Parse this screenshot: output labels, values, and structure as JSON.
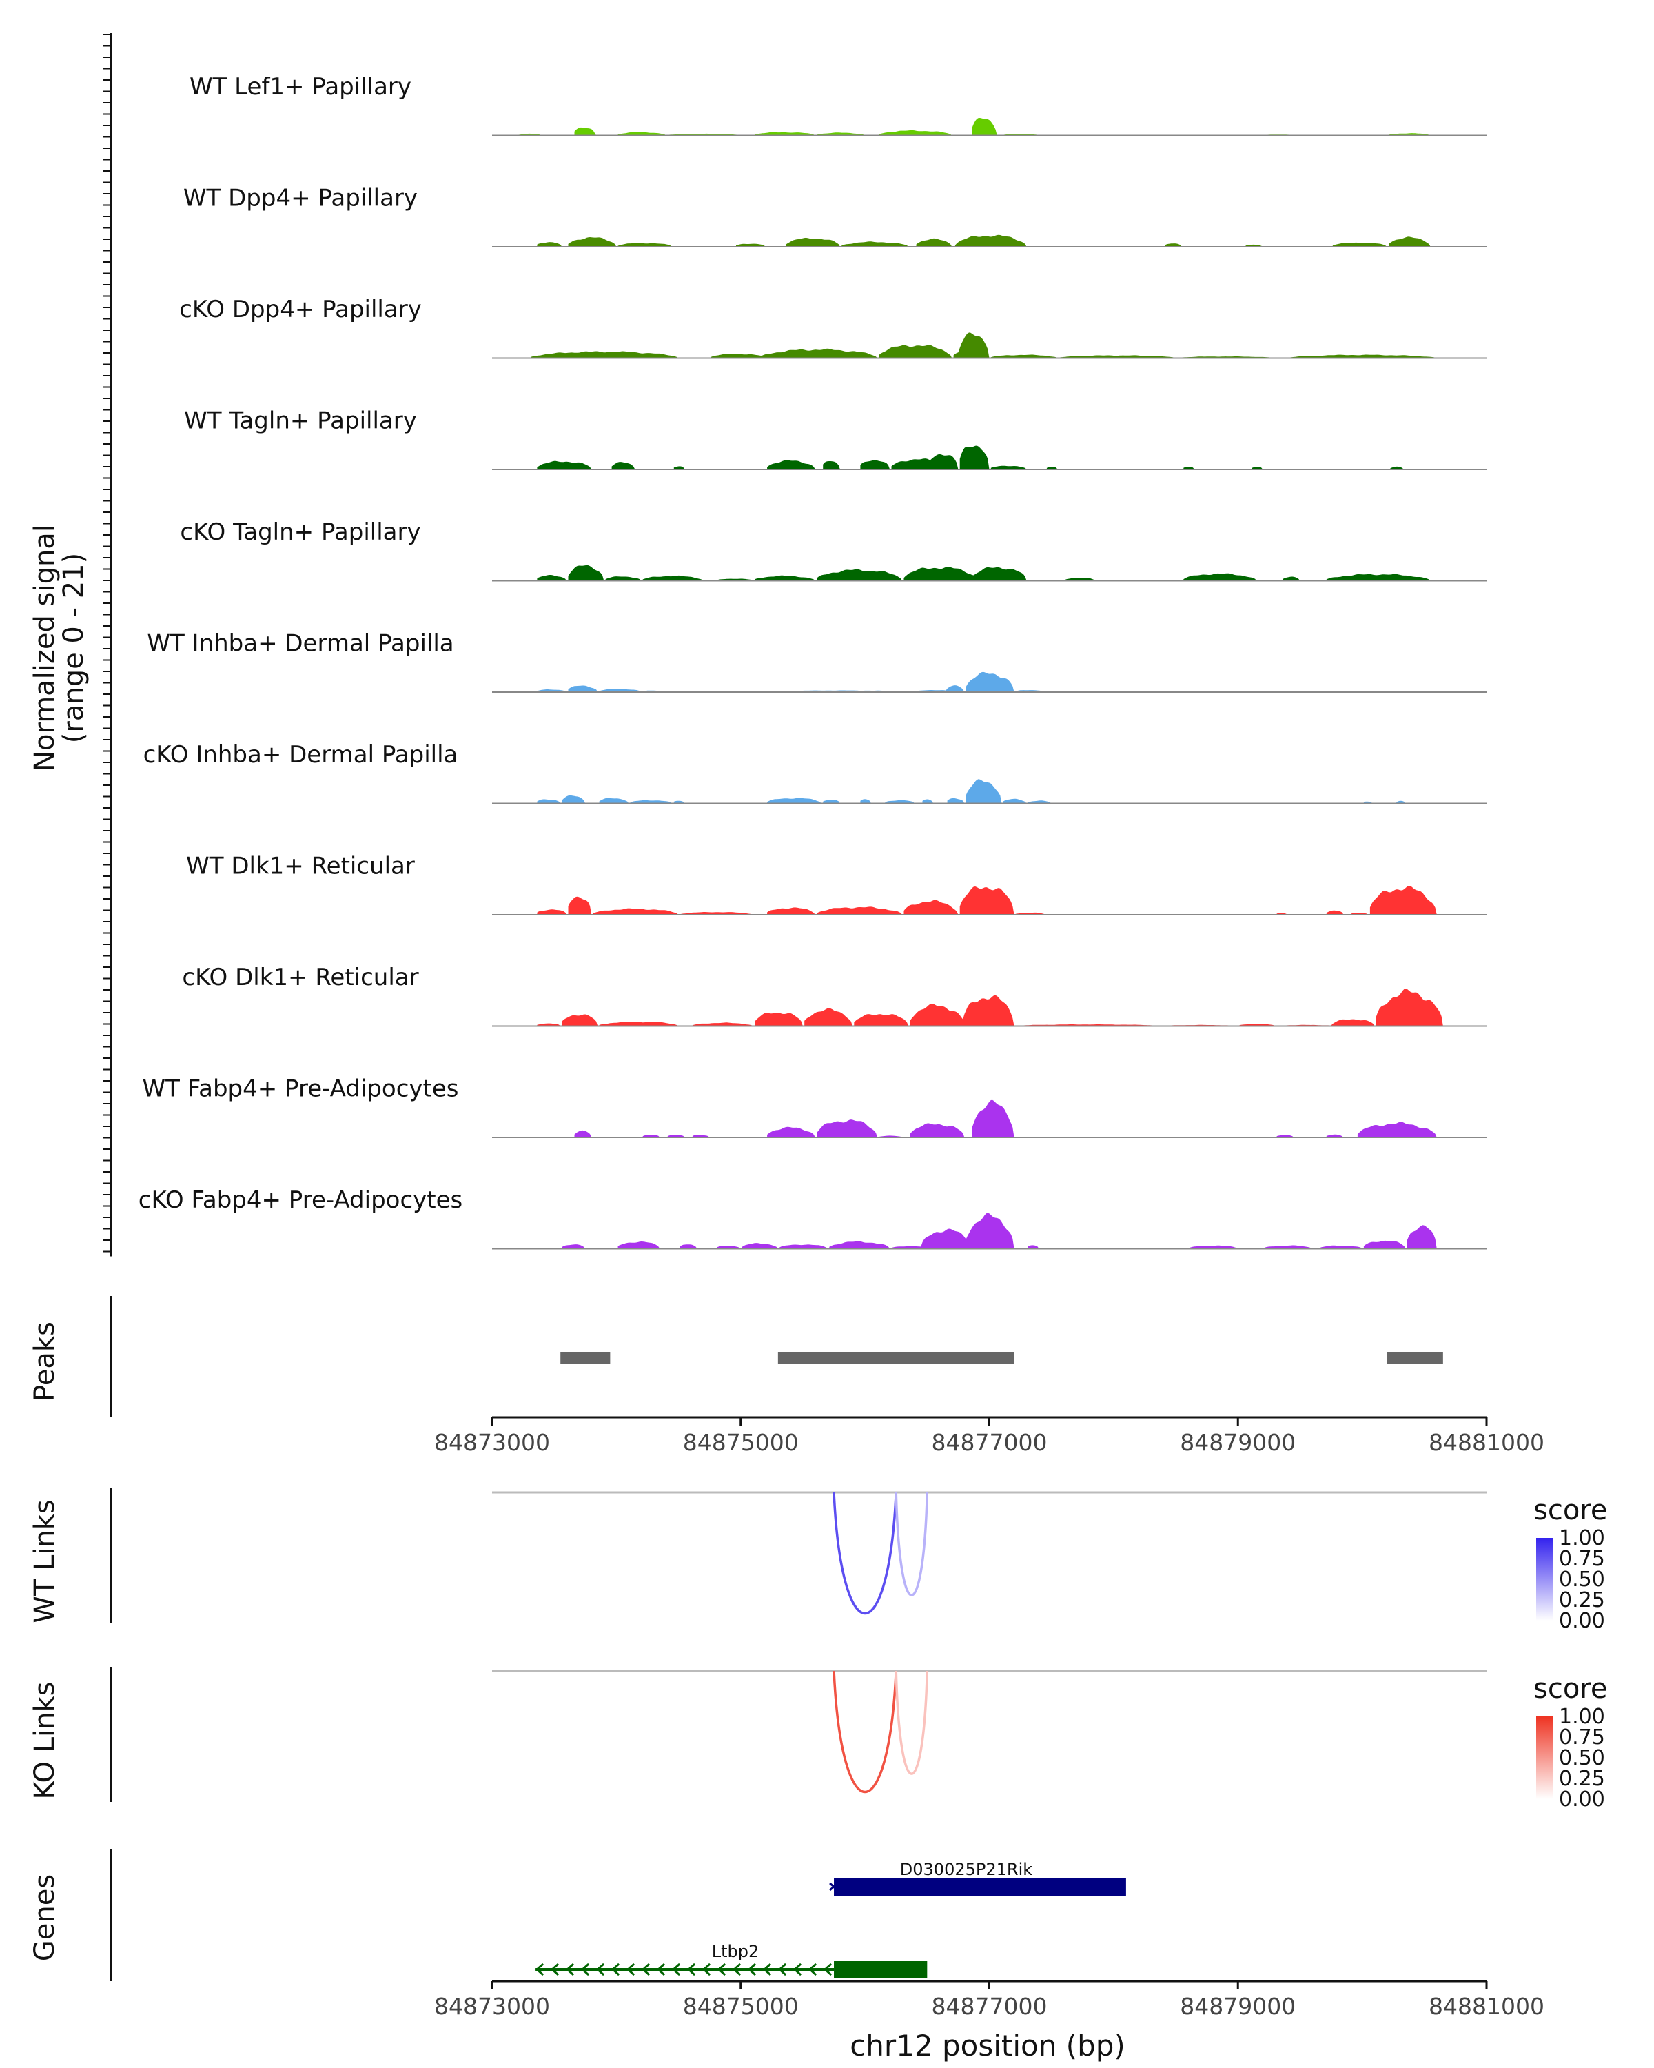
{
  "chart_data": {
    "type": "area",
    "chromosome": "chr12",
    "x_range": [
      84873000,
      84881000
    ],
    "x_ticks": [
      84873000,
      84875000,
      84877000,
      84879000,
      84881000
    ],
    "tick_labels": [
      "84873000",
      "84875000",
      "84877000",
      "84879000",
      "84881000"
    ],
    "xlabel": "chr12 position (bp)",
    "ylabel_line1": "Normalized signal",
    "ylabel_line2": "(range 0 - 21)",
    "y_range": [
      0,
      21
    ],
    "coverage_tracks": [
      {
        "name": "WT Lef1+ Papillary",
        "color": "#66CC00",
        "peaks": [
          [
            84873200,
            84873400,
            0.3
          ],
          [
            84873650,
            84873830,
            1.6
          ],
          [
            84874000,
            84874400,
            0.6
          ],
          [
            84874400,
            84875000,
            0.3
          ],
          [
            84875100,
            84875600,
            0.6
          ],
          [
            84875600,
            84876000,
            0.5
          ],
          [
            84876100,
            84876700,
            0.9
          ],
          [
            84876850,
            84877060,
            3.3
          ],
          [
            84877100,
            84877400,
            0.3
          ],
          [
            84877700,
            84878300,
            0.1
          ],
          [
            84879000,
            84879600,
            0.15
          ],
          [
            84880200,
            84880550,
            0.4
          ]
        ]
      },
      {
        "name": "WT Dpp4+ Papillary",
        "color": "#4A8C00",
        "peaks": [
          [
            84873350,
            84873560,
            0.9
          ],
          [
            84873600,
            84874000,
            1.7
          ],
          [
            84874000,
            84874450,
            0.7
          ],
          [
            84874950,
            84875200,
            0.6
          ],
          [
            84875350,
            84875800,
            1.6
          ],
          [
            84875800,
            84876350,
            0.9
          ],
          [
            84876400,
            84876700,
            1.4
          ],
          [
            84876720,
            84877300,
            2.1
          ],
          [
            84878400,
            84878550,
            0.6
          ],
          [
            84879050,
            84879200,
            0.4
          ],
          [
            84879750,
            84880200,
            0.8
          ],
          [
            84880200,
            84880550,
            1.7
          ]
        ]
      },
      {
        "name": "cKO Dpp4+ Papillary",
        "color": "#458A00",
        "peaks": [
          [
            84873300,
            84874500,
            1.2
          ],
          [
            84873650,
            84873850,
            0.8
          ],
          [
            84874750,
            84875200,
            0.8
          ],
          [
            84875150,
            84876100,
            1.6
          ],
          [
            84876100,
            84876700,
            2.4
          ],
          [
            84876700,
            84876900,
            1.2
          ],
          [
            84876750,
            84877000,
            4.6
          ],
          [
            84877000,
            84877550,
            0.6
          ],
          [
            84877550,
            84878500,
            0.5
          ],
          [
            84878500,
            84879300,
            0.3
          ],
          [
            84879400,
            84880600,
            0.6
          ],
          [
            84880200,
            84880500,
            0.4
          ]
        ]
      },
      {
        "name": "WT Tagln+ Papillary",
        "color": "#006600",
        "peaks": [
          [
            84873350,
            84873800,
            1.5
          ],
          [
            84873950,
            84874150,
            1.3
          ],
          [
            84874450,
            84874550,
            0.6
          ],
          [
            84875200,
            84875600,
            1.6
          ],
          [
            84875650,
            84875800,
            1.6
          ],
          [
            84875950,
            84876200,
            1.8
          ],
          [
            84876200,
            84876650,
            1.9
          ],
          [
            84876500,
            84876750,
            3.0
          ],
          [
            84876750,
            84877000,
            4.7
          ],
          [
            84877000,
            84877300,
            0.7
          ],
          [
            84877450,
            84877550,
            0.5
          ],
          [
            84878550,
            84878650,
            0.5
          ],
          [
            84879100,
            84879200,
            0.5
          ],
          [
            84880220,
            84880330,
            0.5
          ]
        ]
      },
      {
        "name": "cKO Tagln+ Papillary",
        "color": "#006600",
        "peaks": [
          [
            84873350,
            84873600,
            1.0
          ],
          [
            84873600,
            84873900,
            2.8
          ],
          [
            84873900,
            84874200,
            0.8
          ],
          [
            84874200,
            84874700,
            0.9
          ],
          [
            84874800,
            84875100,
            0.4
          ],
          [
            84875100,
            84875600,
            0.9
          ],
          [
            84875600,
            84876300,
            2.0
          ],
          [
            84876300,
            84876900,
            2.5
          ],
          [
            84876850,
            84877300,
            2.5
          ],
          [
            84877600,
            84877850,
            0.6
          ],
          [
            84878550,
            84879150,
            1.3
          ],
          [
            84879350,
            84879500,
            0.7
          ],
          [
            84879700,
            84880550,
            1.2
          ]
        ]
      },
      {
        "name": "WT Inhba+ Dermal Papilla",
        "color": "#5DA9E9",
        "peaks": [
          [
            84873350,
            84873600,
            0.5
          ],
          [
            84873600,
            84873850,
            1.2
          ],
          [
            84873850,
            84874200,
            0.6
          ],
          [
            84874200,
            84874400,
            0.3
          ],
          [
            84874500,
            84875100,
            0.2
          ],
          [
            84875200,
            84876400,
            0.3
          ],
          [
            84876400,
            84876700,
            0.4
          ],
          [
            84876650,
            84876800,
            1.2
          ],
          [
            84876800,
            84877200,
            3.5
          ],
          [
            84877200,
            84877450,
            0.4
          ],
          [
            84877650,
            84877750,
            0.2
          ],
          [
            84879750,
            84880250,
            0.15
          ]
        ]
      },
      {
        "name": "cKO Inhba+ Dermal Papilla",
        "color": "#5DA9E9",
        "peaks": [
          [
            84873350,
            84873550,
            0.8
          ],
          [
            84873550,
            84873750,
            1.4
          ],
          [
            84873850,
            84874100,
            1.0
          ],
          [
            84874100,
            84874450,
            0.6
          ],
          [
            84874450,
            84874550,
            0.5
          ],
          [
            84875200,
            84875650,
            1.0
          ],
          [
            84875650,
            84875800,
            0.7
          ],
          [
            84875950,
            84876050,
            0.8
          ],
          [
            84876150,
            84876400,
            0.6
          ],
          [
            84876450,
            84876550,
            0.8
          ],
          [
            84876650,
            84876800,
            1.0
          ],
          [
            84876800,
            84877100,
            4.2
          ],
          [
            84877100,
            84877300,
            0.8
          ],
          [
            84877300,
            84877500,
            0.5
          ],
          [
            84880000,
            84880080,
            0.4
          ],
          [
            84880270,
            84880350,
            0.5
          ]
        ]
      },
      {
        "name": "WT Dlk1+ Reticular",
        "color": "#FF3333",
        "peaks": [
          [
            84873350,
            84873600,
            1.0
          ],
          [
            84873600,
            84873800,
            3.5
          ],
          [
            84873800,
            84874500,
            1.1
          ],
          [
            84874500,
            84875100,
            0.5
          ],
          [
            84875200,
            84875600,
            1.3
          ],
          [
            84875600,
            84876300,
            1.4
          ],
          [
            84876300,
            84876750,
            2.5
          ],
          [
            84876750,
            84877200,
            5.3
          ],
          [
            84877200,
            84877450,
            0.4
          ],
          [
            84879300,
            84879400,
            0.3
          ],
          [
            84879700,
            84879850,
            0.8
          ],
          [
            84879900,
            84880050,
            0.4
          ],
          [
            84880050,
            84880600,
            5.0
          ]
        ]
      },
      {
        "name": "cKO Dlk1+ Reticular",
        "color": "#FF3333",
        "peaks": [
          [
            84873350,
            84873550,
            0.5
          ],
          [
            84873550,
            84873850,
            2.2
          ],
          [
            84873850,
            84874500,
            0.8
          ],
          [
            84874600,
            84875100,
            0.6
          ],
          [
            84875100,
            84875500,
            2.6
          ],
          [
            84875500,
            84875900,
            3.0
          ],
          [
            84875900,
            84876350,
            2.3
          ],
          [
            84876350,
            84876800,
            3.8
          ],
          [
            84876780,
            84877200,
            5.5
          ],
          [
            84877200,
            84878400,
            0.3
          ],
          [
            84878400,
            84879000,
            0.2
          ],
          [
            84879000,
            84879300,
            0.4
          ],
          [
            84879300,
            84879800,
            0.2
          ],
          [
            84879750,
            84880100,
            1.3
          ],
          [
            84880100,
            84880650,
            6.3
          ]
        ]
      },
      {
        "name": "WT Fabp4+ Pre-Adipocytes",
        "color": "#AA33EE",
        "peaks": [
          [
            84873650,
            84873800,
            1.2
          ],
          [
            84874200,
            84874350,
            0.5
          ],
          [
            84874400,
            84874550,
            0.5
          ],
          [
            84874600,
            84874750,
            0.5
          ],
          [
            84875200,
            84875600,
            1.8
          ],
          [
            84875600,
            84876100,
            3.2
          ],
          [
            84876100,
            84876300,
            0.3
          ],
          [
            84876350,
            84876800,
            2.5
          ],
          [
            84876850,
            84877200,
            6.3
          ],
          [
            84879300,
            84879450,
            0.5
          ],
          [
            84879700,
            84879850,
            0.5
          ],
          [
            84879950,
            84880600,
            2.6
          ]
        ]
      },
      {
        "name": "cKO Fabp4+ Pre-Adipocytes",
        "color": "#AA33EE",
        "peaks": [
          [
            84873550,
            84873750,
            0.8
          ],
          [
            84874000,
            84874350,
            1.3
          ],
          [
            84874500,
            84874650,
            0.8
          ],
          [
            84874800,
            84875000,
            0.6
          ],
          [
            84875000,
            84875300,
            1.0
          ],
          [
            84875300,
            84875700,
            0.8
          ],
          [
            84875700,
            84876200,
            1.3
          ],
          [
            84876200,
            84876500,
            0.5
          ],
          [
            84876450,
            84876850,
            3.5
          ],
          [
            84876800,
            84877200,
            6.0
          ],
          [
            84877300,
            84877400,
            0.7
          ],
          [
            84878600,
            84879000,
            0.6
          ],
          [
            84879200,
            84879600,
            0.6
          ],
          [
            84879650,
            84880000,
            0.6
          ],
          [
            84880000,
            84880350,
            1.5
          ],
          [
            84880350,
            84880600,
            4.2
          ]
        ]
      }
    ],
    "peaks_label": "Peaks",
    "peak_regions": [
      [
        84873550,
        84873950
      ],
      [
        84875300,
        84877200
      ],
      [
        84880200,
        84880650
      ]
    ],
    "links_tracks": [
      {
        "label": "WT Links",
        "legend_title": "score",
        "color_high": "#3322EE",
        "links": [
          {
            "start": 84875750,
            "end": 84876250,
            "score": 0.8
          },
          {
            "start": 84876250,
            "end": 84876500,
            "score": 0.35
          }
        ]
      },
      {
        "label": "KO Links",
        "legend_title": "score",
        "color_high": "#EE3322",
        "links": [
          {
            "start": 84875750,
            "end": 84876250,
            "score": 0.85
          },
          {
            "start": 84876250,
            "end": 84876500,
            "score": 0.3
          }
        ]
      }
    ],
    "legend_values": [
      "1.00",
      "0.75",
      "0.50",
      "0.25",
      "0.00"
    ],
    "genes_label": "Genes",
    "genes": [
      {
        "name": "D030025P21Rik",
        "start": 84875750,
        "end": 84878100,
        "strand": "+",
        "color": "#000080"
      },
      {
        "name": "Ltbp2",
        "start": 84873350,
        "end": 84876500,
        "exon_start": 84875750,
        "exon_end": 84876500,
        "strand": "-",
        "color": "#006400"
      }
    ]
  }
}
